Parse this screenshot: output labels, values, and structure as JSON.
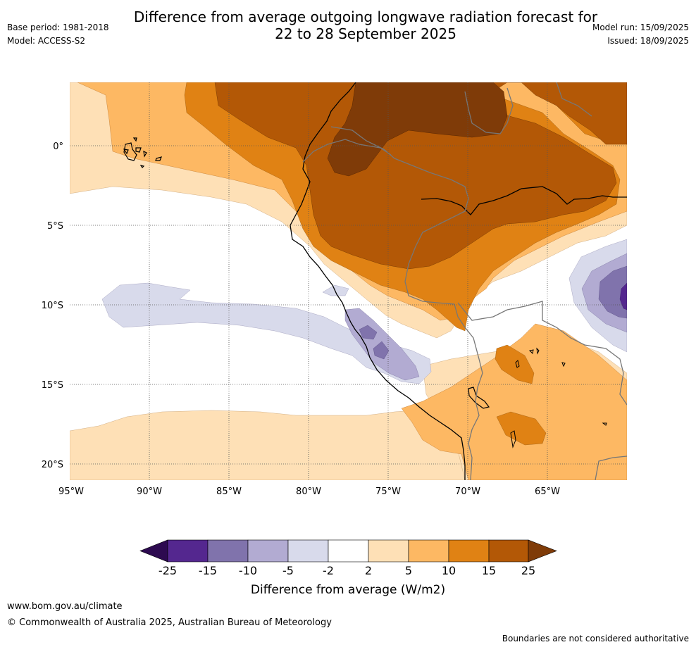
{
  "header": {
    "title_line1": "Difference from average outgoing longwave radiation forecast for",
    "title_line2": "22 to 28 September 2025",
    "base_period": "Base period: 1981-2018",
    "model": "Model: ACCESS-S2",
    "model_run": "Model run: 15/09/2025",
    "issued": "Issued: 18/09/2025"
  },
  "map": {
    "lat_labels": [
      "0°",
      "5°S",
      "10°S",
      "15°S",
      "20°S"
    ],
    "lon_labels": [
      "95°W",
      "90°W",
      "85°W",
      "80°W",
      "75°W",
      "70°W",
      "65°W"
    ]
  },
  "colorbar": {
    "labels": [
      "-25",
      "-15",
      "-10",
      "-5",
      "-2",
      "2",
      "5",
      "10",
      "15",
      "25"
    ],
    "colors": [
      "#2d0a50",
      "#54278f",
      "#8073ac",
      "#b2abd2",
      "#d8daeb",
      "#ffffff",
      "#fee0b6",
      "#fdb863",
      "#e08214",
      "#b35806",
      "#7f3b08"
    ],
    "title": "Difference from average (W/m2)"
  },
  "footer": {
    "website": "www.bom.gov.au/climate",
    "copyright": "© Commonwealth of Australia 2025, Australian Bureau of Meteorology",
    "disclaimer": "Boundaries are not considered authoritative"
  }
}
